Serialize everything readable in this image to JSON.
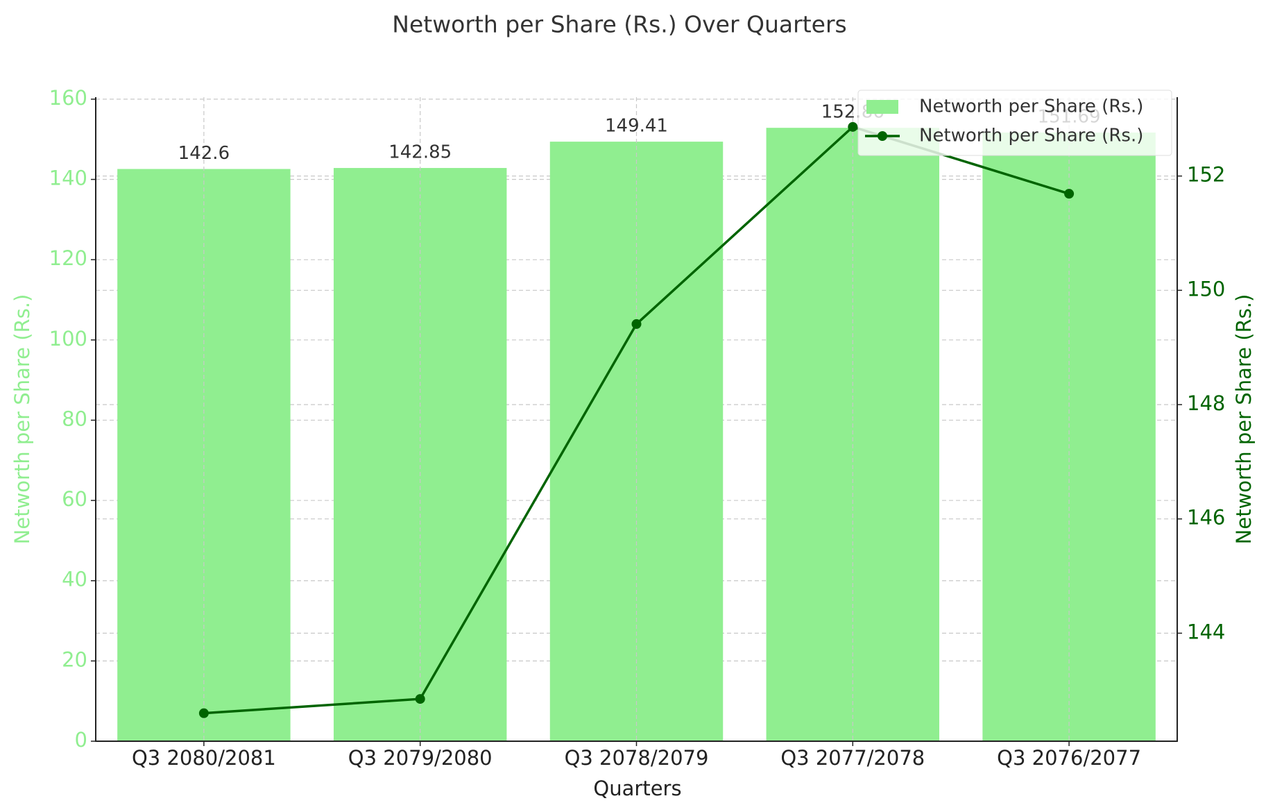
{
  "chart_data": {
    "type": "bar-line",
    "title": "Networth per Share (Rs.) Over Quarters",
    "x_label": "Quarters",
    "y_label": "Networth per Share (Rs.)",
    "y2_label": "Networth per Share (Rs.)",
    "categories": [
      "Q3 2080/2081",
      "Q3 2079/2080",
      "Q3 2078/2079",
      "Q3 2077/2078",
      "Q3 2076/2077"
    ],
    "series": [
      {
        "name": "Networth per Share (Rs.)",
        "type": "bar",
        "color": "#90ee90",
        "values": [
          142.6,
          142.85,
          149.41,
          152.86,
          151.69
        ]
      },
      {
        "name": "Networth per Share (Rs.)",
        "type": "line",
        "axis": "y2",
        "color": "#006400",
        "values": [
          142.6,
          142.85,
          149.41,
          152.86,
          151.69
        ]
      }
    ],
    "ylim": [
      0,
      160.5
    ],
    "yticks": [
      0,
      20,
      40,
      60,
      80,
      100,
      120,
      140,
      160
    ],
    "y2lim": [
      142.11,
      153.38
    ],
    "y2ticks": [
      144,
      146,
      148,
      150,
      152
    ],
    "y_color": "#90ee90",
    "y2_color": "#006400",
    "grid": true,
    "legend": "upper right"
  }
}
